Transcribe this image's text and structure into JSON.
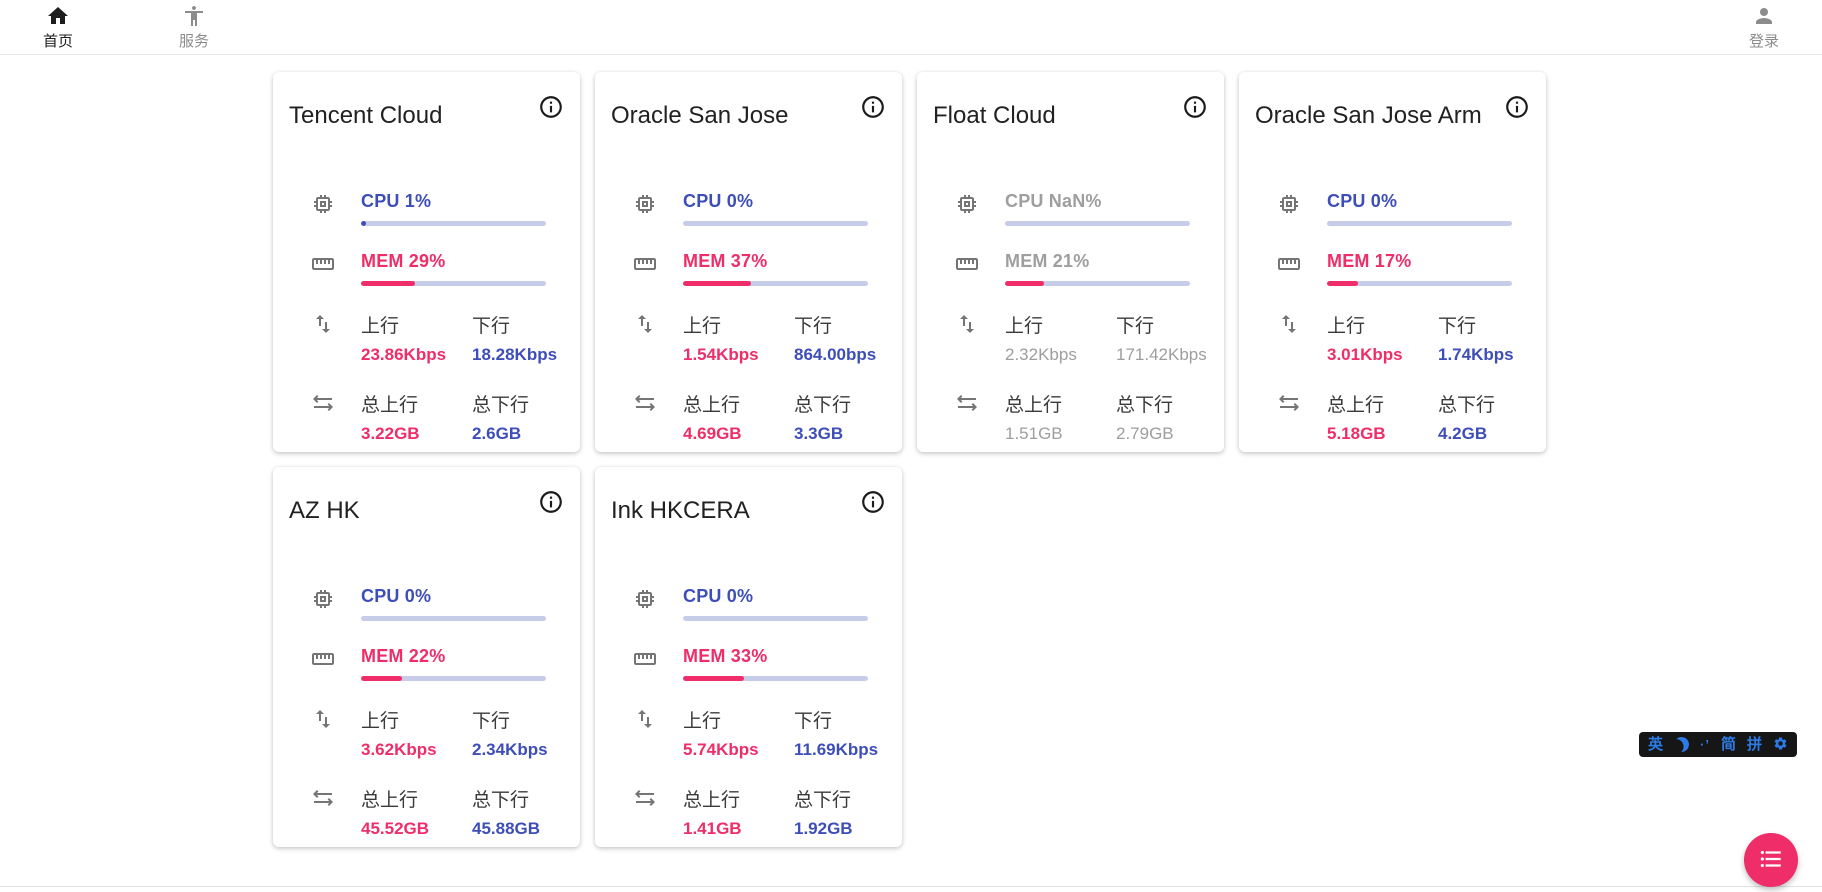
{
  "nav": {
    "home": {
      "label": "首页"
    },
    "services": {
      "label": "服务"
    },
    "login": {
      "label": "登录"
    }
  },
  "metric_labels": {
    "upload": "上行",
    "download": "下行",
    "total_upload": "总上行",
    "total_download": "总下行"
  },
  "servers": [
    {
      "name": "Tencent Cloud",
      "online": true,
      "cpu_label": "CPU 1%",
      "cpu_pct": 1,
      "mem_label": "MEM 29%",
      "mem_pct": 29,
      "upload": "23.86Kbps",
      "download": "18.28Kbps",
      "total_upload": "3.22GB",
      "total_download": "2.6GB"
    },
    {
      "name": "Oracle San Jose",
      "online": true,
      "cpu_label": "CPU 0%",
      "cpu_pct": 0,
      "mem_label": "MEM 37%",
      "mem_pct": 37,
      "upload": "1.54Kbps",
      "download": "864.00bps",
      "total_upload": "4.69GB",
      "total_download": "3.3GB"
    },
    {
      "name": "Float Cloud",
      "online": false,
      "cpu_label": "CPU NaN%",
      "cpu_pct": 0,
      "mem_label": "MEM 21%",
      "mem_pct": 21,
      "upload": "2.32Kbps",
      "download": "171.42Kbps",
      "total_upload": "1.51GB",
      "total_download": "2.79GB"
    },
    {
      "name": "Oracle San Jose Arm",
      "online": true,
      "cpu_label": "CPU 0%",
      "cpu_pct": 0,
      "mem_label": "MEM 17%",
      "mem_pct": 17,
      "upload": "3.01Kbps",
      "download": "1.74Kbps",
      "total_upload": "5.18GB",
      "total_download": "4.2GB"
    },
    {
      "name": "AZ HK",
      "online": true,
      "cpu_label": "CPU 0%",
      "cpu_pct": 0,
      "mem_label": "MEM 22%",
      "mem_pct": 22,
      "upload": "3.62Kbps",
      "download": "2.34Kbps",
      "total_upload": "45.52GB",
      "total_download": "45.88GB"
    },
    {
      "name": "Ink HKCERA",
      "online": true,
      "cpu_label": "CPU 0%",
      "cpu_pct": 0,
      "mem_label": "MEM 33%",
      "mem_pct": 33,
      "upload": "5.74Kbps",
      "download": "11.69Kbps",
      "total_upload": "1.41GB",
      "total_download": "1.92GB"
    }
  ],
  "ime_bar": {
    "lang": "英",
    "punct": "·’",
    "simplified": "简",
    "pinyin": "拼"
  },
  "colors": {
    "accent_blue": "#3d4eb8",
    "accent_pink": "#ee2d69",
    "bar_track": "#c7cce9",
    "offline_gray": "#9e9e9e"
  }
}
